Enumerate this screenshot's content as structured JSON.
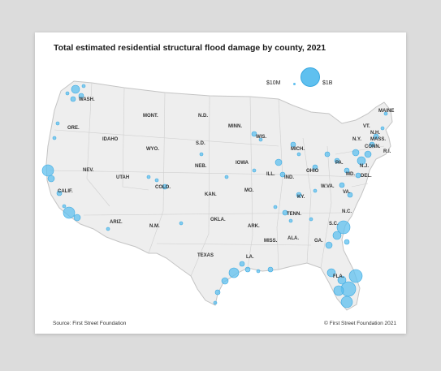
{
  "title": "Total estimated residential structural flood damage by county, 2021",
  "legend": {
    "small_label": "$10M",
    "large_label": "$1B"
  },
  "source": "Source: First Street Foundation",
  "copyright": "© First Street Foundation 2021",
  "colors": {
    "bubble": "#5fc0ef",
    "bubble_stroke": "#3aa8e0",
    "land": "#eeeeee",
    "borders": "#c8c8c8",
    "background": "#dcdcdc",
    "card": "#ffffff"
  },
  "state_labels": [
    "WASH.",
    "MONT.",
    "N.D.",
    "MAINE",
    "MINN.",
    "VT.",
    "N.H.",
    "ORE.",
    "IDAHO",
    "S.D.",
    "WIS.",
    "N.Y.",
    "MASS.",
    "WYO.",
    "MICH.",
    "CONN.",
    "R.I.",
    "IOWA",
    "PA.",
    "N.J.",
    "NEV.",
    "NEB.",
    "OHIO",
    "UTAH",
    "ILL.",
    "IND.",
    "MD.",
    "DEL.",
    "COLO.",
    "W.VA.",
    "CALIF.",
    "KAN.",
    "MO.",
    "VA.",
    "KY.",
    "N.C.",
    "TENN.",
    "OKLA.",
    "ARIZ.",
    "N.M.",
    "ARK.",
    "S.C.",
    "MISS.",
    "ALA.",
    "GA.",
    "TEXAS",
    "LA.",
    "FLA."
  ]
}
